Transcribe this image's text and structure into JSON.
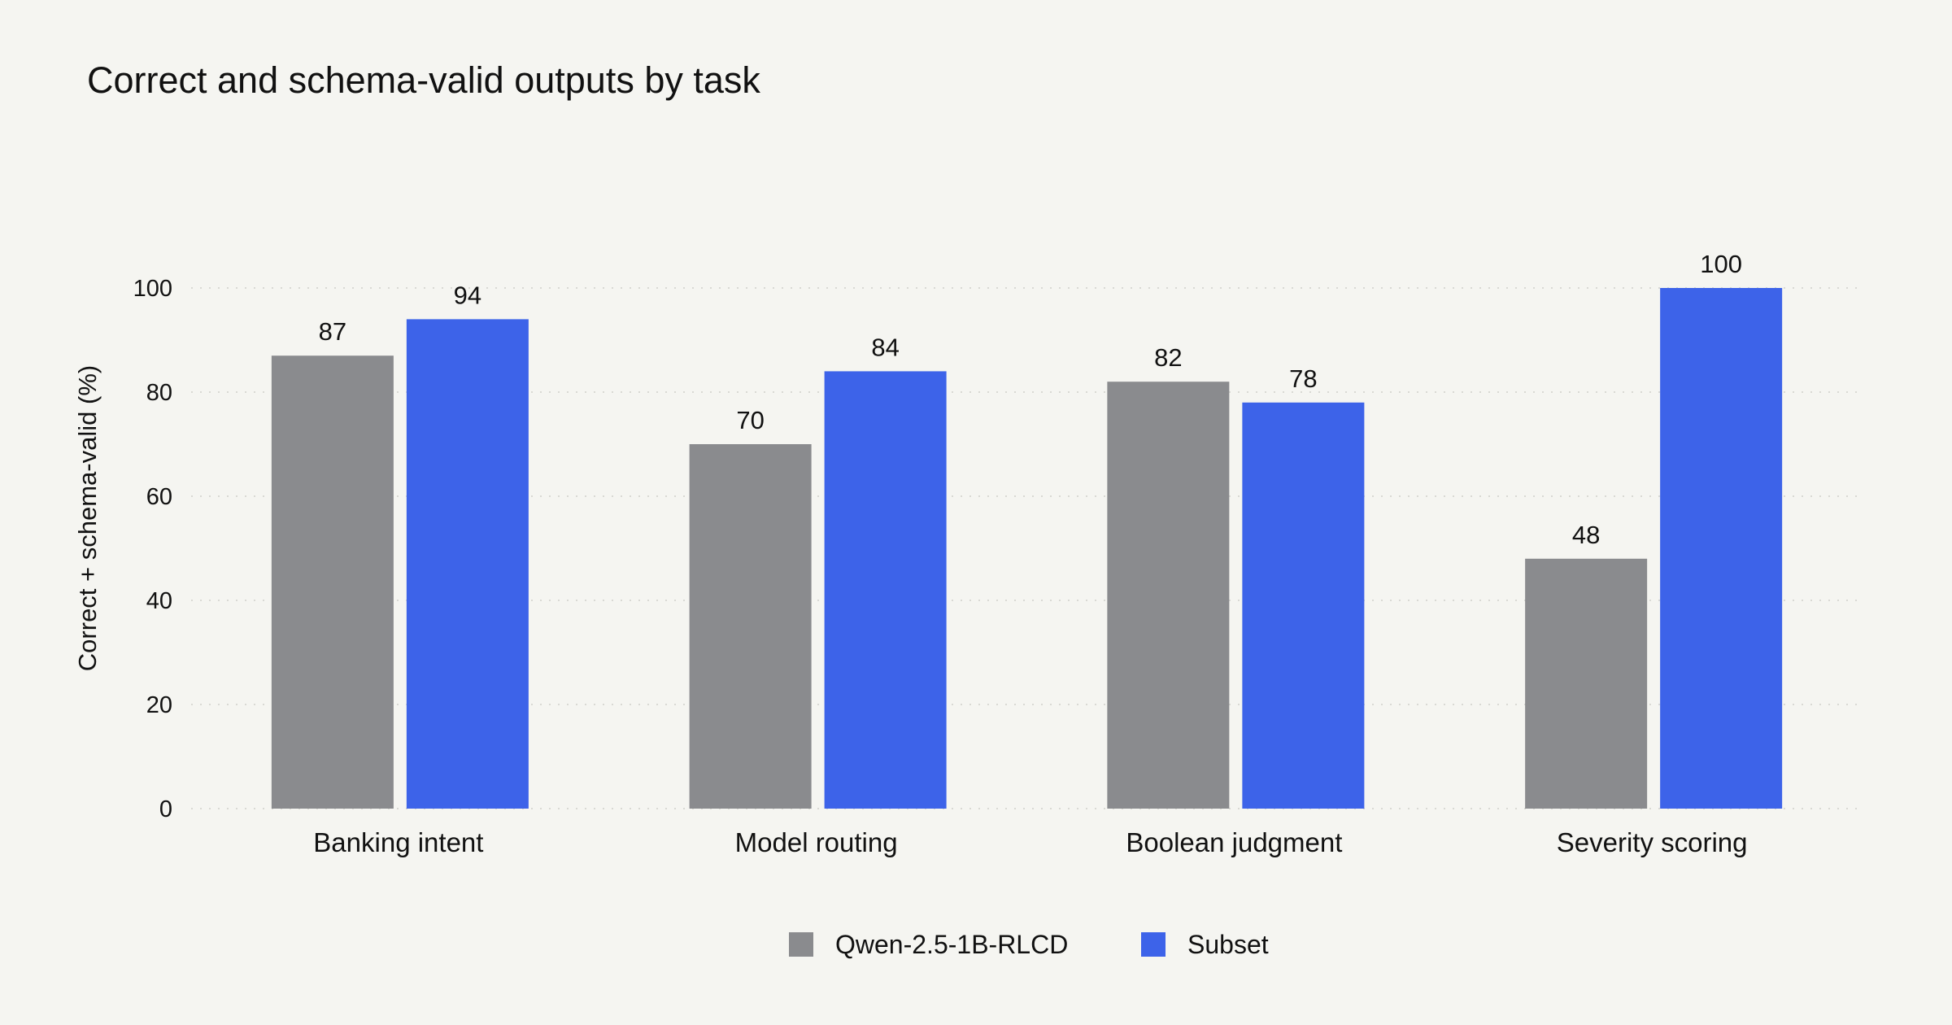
{
  "chart_data": {
    "type": "bar",
    "title": "Correct and schema-valid outputs by task",
    "xlabel": "",
    "ylabel": "Correct + schema-valid (%)",
    "ylim": [
      0,
      100
    ],
    "yticks": [
      0,
      20,
      40,
      60,
      80,
      100
    ],
    "grid": true,
    "legend_position": "bottom-center",
    "categories": [
      "Banking intent",
      "Model routing",
      "Boolean judgment",
      "Severity scoring"
    ],
    "series": [
      {
        "name": "Qwen-2.5-1B-RLCD",
        "color": "#8a8b8e",
        "values": [
          87,
          70,
          82,
          48
        ]
      },
      {
        "name": "Subset",
        "color": "#3d63e9",
        "values": [
          94,
          84,
          78,
          100
        ]
      }
    ]
  }
}
